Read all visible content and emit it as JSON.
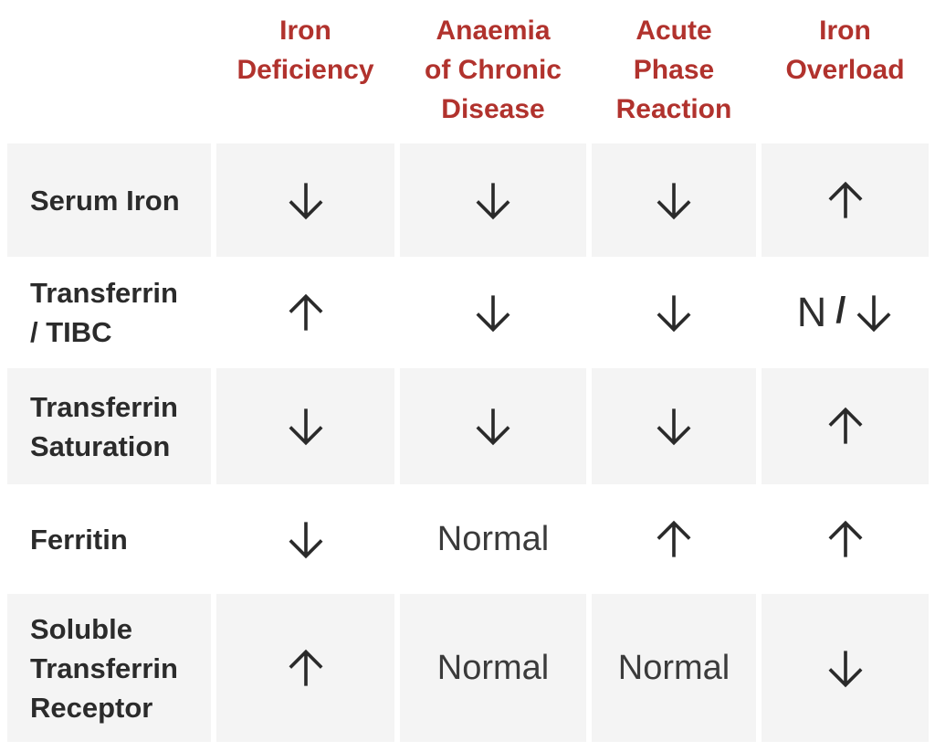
{
  "colors": {
    "header_text_red": "#b1322d",
    "row_shade_gray": "#f4f4f4",
    "row_header_text": "#2b2b2b",
    "cell_text": "#3b3b3b",
    "background": "#ffffff"
  },
  "table": {
    "columns": [
      "Iron\nDeficiency",
      "Anaemia\nof Chronic\nDisease",
      "Acute\nPhase\nReaction",
      "Iron\nOverload"
    ],
    "rows": [
      {
        "label": "Serum Iron",
        "cells": [
          "↓",
          "↓",
          "↓",
          "↑"
        ]
      },
      {
        "label": "Transferrin\n/ TIBC",
        "cells": [
          "↑",
          "↓",
          "↓",
          "N / ↓"
        ]
      },
      {
        "label": "Transferrin\nSaturation",
        "cells": [
          "↓",
          "↓",
          "↓",
          "↑"
        ]
      },
      {
        "label": "Ferritin",
        "cells": [
          "↓",
          "Normal",
          "↑",
          "↑"
        ]
      },
      {
        "label": "Soluble\nTransferrin\nReceptor",
        "cells": [
          "↑",
          "Normal",
          "Normal",
          "↓"
        ]
      }
    ]
  },
  "chart_data": {
    "type": "table",
    "columns": [
      "",
      "Iron Deficiency",
      "Anaemia of Chronic Disease",
      "Acute Phase Reaction",
      "Iron Overload"
    ],
    "rows": [
      [
        "Serum Iron",
        "↓",
        "↓",
        "↓",
        "↑"
      ],
      [
        "Transferrin / TIBC",
        "↑",
        "↓",
        "↓",
        "N / ↓"
      ],
      [
        "Transferrin Saturation",
        "↓",
        "↓",
        "↓",
        "↑"
      ],
      [
        "Ferritin",
        "↓",
        "Normal",
        "↑",
        "↑"
      ],
      [
        "Soluble Transferrin Receptor",
        "↑",
        "Normal",
        "Normal",
        "↓"
      ]
    ]
  }
}
